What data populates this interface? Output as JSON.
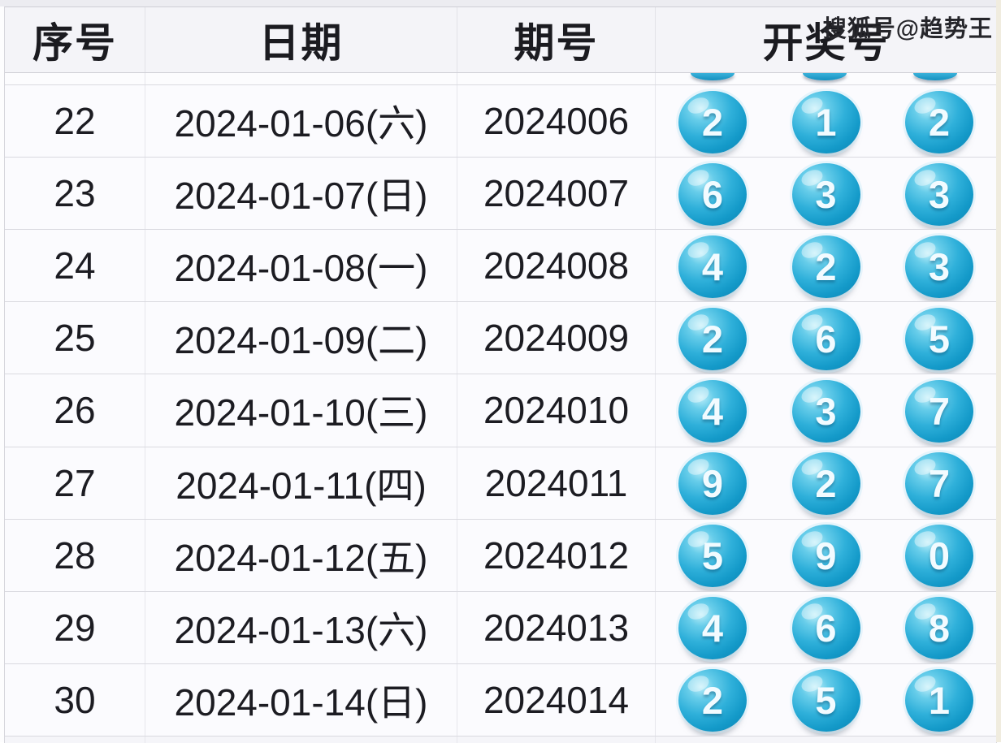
{
  "watermark": "搜狐号@趋势王",
  "table": {
    "headers": {
      "index": "序号",
      "date": "日期",
      "period": "期号",
      "numbers": "开奖号"
    },
    "rows": [
      {
        "index": "22",
        "date": "2024-01-06(六)",
        "period": "2024006",
        "balls": [
          "2",
          "1",
          "2"
        ]
      },
      {
        "index": "23",
        "date": "2024-01-07(日)",
        "period": "2024007",
        "balls": [
          "6",
          "3",
          "3"
        ]
      },
      {
        "index": "24",
        "date": "2024-01-08(一)",
        "period": "2024008",
        "balls": [
          "4",
          "2",
          "3"
        ]
      },
      {
        "index": "25",
        "date": "2024-01-09(二)",
        "period": "2024009",
        "balls": [
          "2",
          "6",
          "5"
        ]
      },
      {
        "index": "26",
        "date": "2024-01-10(三)",
        "period": "2024010",
        "balls": [
          "4",
          "3",
          "7"
        ]
      },
      {
        "index": "27",
        "date": "2024-01-11(四)",
        "period": "2024011",
        "balls": [
          "9",
          "2",
          "7"
        ]
      },
      {
        "index": "28",
        "date": "2024-01-12(五)",
        "period": "2024012",
        "balls": [
          "5",
          "9",
          "0"
        ]
      },
      {
        "index": "29",
        "date": "2024-01-13(六)",
        "period": "2024013",
        "balls": [
          "4",
          "6",
          "8"
        ]
      },
      {
        "index": "30",
        "date": "2024-01-14(日)",
        "period": "2024014",
        "balls": [
          "2",
          "5",
          "1"
        ]
      }
    ]
  },
  "colors": {
    "ball_blue": "#1a9fce",
    "header_bg": "#f4f4f8",
    "row_bg": "#fbfbfe",
    "border": "#dadae0",
    "text": "#1c1c22",
    "watermark_text": "#26262b",
    "side_strip": "#f0ecdf"
  }
}
